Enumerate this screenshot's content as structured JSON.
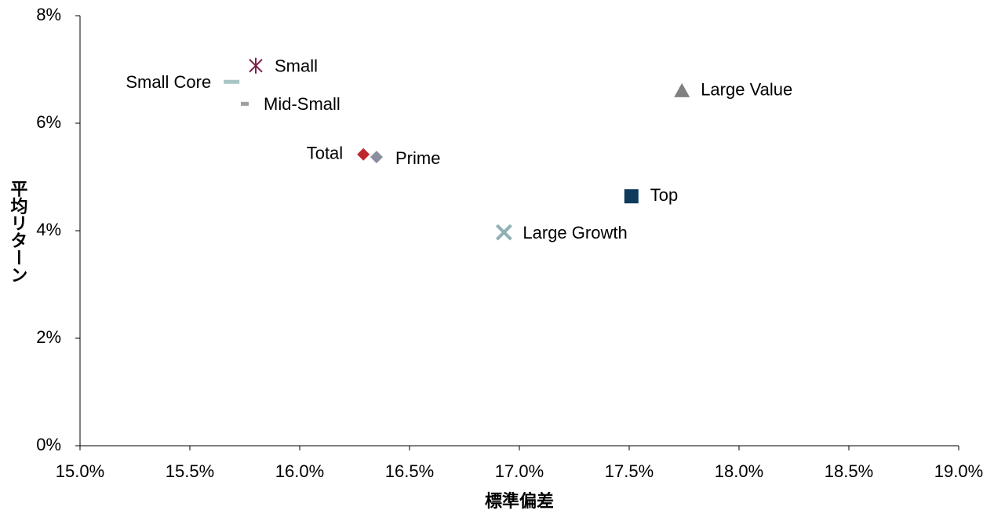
{
  "chart_data": {
    "type": "scatter",
    "xlabel": "標準偏差",
    "ylabel": "平均リターン",
    "xlim": [
      15.0,
      19.0
    ],
    "xticks": [
      {
        "value": 15.0,
        "label": "15.0%"
      },
      {
        "value": 15.5,
        "label": "15.5%"
      },
      {
        "value": 16.0,
        "label": "16.0%"
      },
      {
        "value": 16.5,
        "label": "16.5%"
      },
      {
        "value": 17.0,
        "label": "17.0%"
      },
      {
        "value": 17.5,
        "label": "17.5%"
      },
      {
        "value": 18.0,
        "label": "18.0%"
      },
      {
        "value": 18.5,
        "label": "18.5%"
      },
      {
        "value": 19.0,
        "label": "19.0%"
      }
    ],
    "ylim": [
      0,
      8
    ],
    "yticks": [
      {
        "value": 0,
        "label": "0%"
      },
      {
        "value": 2,
        "label": "2%"
      },
      {
        "value": 4,
        "label": "4%"
      },
      {
        "value": 6,
        "label": "6%"
      },
      {
        "value": 8,
        "label": "8%"
      }
    ],
    "grid": false,
    "series": [
      {
        "name": "Small",
        "color": "#7b1f4a",
        "marker": "asterisk",
        "x": [
          15.8
        ],
        "y": [
          7.07
        ]
      },
      {
        "name": "Small Core",
        "color": "#a9c4c4",
        "marker": "dash",
        "x": [
          15.69
        ],
        "y": [
          6.77
        ]
      },
      {
        "name": "Mid-Small",
        "color": "#a0a0a0",
        "marker": "small-dash",
        "x": [
          15.75
        ],
        "y": [
          6.36
        ]
      },
      {
        "name": "Total",
        "color": "#c0282d",
        "marker": "diamond",
        "x": [
          16.29
        ],
        "y": [
          5.42
        ]
      },
      {
        "name": "Prime",
        "color": "#8a8fa0",
        "marker": "diamond",
        "x": [
          16.35
        ],
        "y": [
          5.37
        ]
      },
      {
        "name": "Top",
        "color": "#0e3a5c",
        "marker": "square",
        "x": [
          17.51
        ],
        "y": [
          4.64
        ]
      },
      {
        "name": "Large Growth",
        "color": "#8fb0b5",
        "marker": "x",
        "x": [
          16.93
        ],
        "y": [
          3.97
        ]
      },
      {
        "name": "Large Value",
        "color": "#808080",
        "marker": "triangle",
        "x": [
          17.74
        ],
        "y": [
          6.6
        ]
      }
    ]
  }
}
